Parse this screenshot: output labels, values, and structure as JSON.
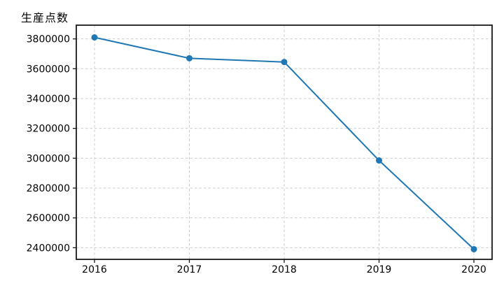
{
  "chart_data": {
    "type": "line",
    "title": "生産点数",
    "categories": [
      "2016",
      "2017",
      "2018",
      "2019",
      "2020"
    ],
    "series": [
      {
        "name": "生産点数",
        "values": [
          3810000,
          3670000,
          3645000,
          2985000,
          2390000
        ]
      }
    ],
    "xlabel": "",
    "ylabel": "",
    "y_ticks": [
      2400000,
      2600000,
      2800000,
      3000000,
      3200000,
      3400000,
      3600000,
      3800000
    ],
    "y_tick_labels": [
      "2400000",
      "2600000",
      "2800000",
      "3000000",
      "3200000",
      "3400000",
      "3600000",
      "3800000"
    ],
    "ylim": [
      2322000,
      3892000
    ],
    "grid": true,
    "grid_style": "dashed",
    "legend_position": "none",
    "marker": "circle",
    "colors": {
      "line": "#1f77b4",
      "marker": "#1f77b4",
      "grid": "#cccccc",
      "frame": "#1a1a1a",
      "tick": "#1a1a1a",
      "text": "#000000",
      "background": "#ffffff"
    }
  }
}
